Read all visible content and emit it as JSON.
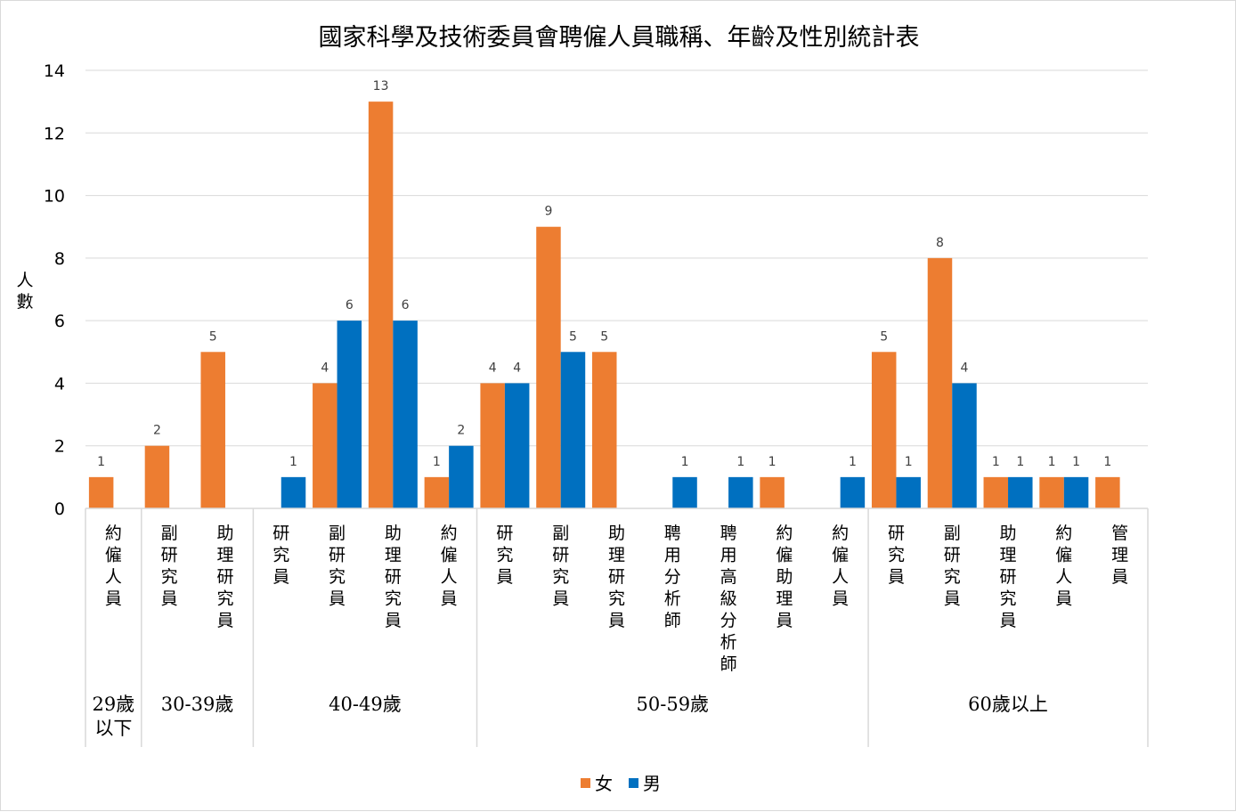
{
  "chart_data": {
    "type": "bar",
    "title": "國家科學及技術委員會聘僱人員職稱、年齡及性別統計表",
    "ylabel": "人數",
    "xlabel": "",
    "ylim": [
      0,
      14
    ],
    "yticks": [
      0,
      2,
      4,
      6,
      8,
      10,
      12,
      14
    ],
    "grid": true,
    "legend_position": "bottom",
    "groups": [
      {
        "label": "29歲以下",
        "categories": [
          "約僱人員"
        ]
      },
      {
        "label": "30-39歲",
        "categories": [
          "副研究員",
          "助理研究員"
        ]
      },
      {
        "label": "40-49歲",
        "categories": [
          "研究員",
          "副研究員",
          "助理研究員",
          "約僱人員"
        ]
      },
      {
        "label": "50-59歲",
        "categories": [
          "研究員",
          "副研究員",
          "助理研究員",
          "聘用分析師",
          "聘用高級分析師",
          "約僱助理員",
          "約僱人員"
        ]
      },
      {
        "label": "60歲以上",
        "categories": [
          "研究員",
          "副研究員",
          "助理研究員",
          "約僱人員",
          "管理員"
        ]
      }
    ],
    "series": [
      {
        "name": "女",
        "color": "#ed7d31",
        "values": [
          1,
          2,
          5,
          null,
          4,
          13,
          1,
          4,
          9,
          5,
          null,
          null,
          1,
          null,
          5,
          8,
          1,
          1,
          1
        ]
      },
      {
        "name": "男",
        "color": "#0070c0",
        "values": [
          null,
          null,
          null,
          1,
          6,
          6,
          2,
          4,
          5,
          null,
          1,
          1,
          null,
          1,
          1,
          4,
          1,
          1,
          null
        ]
      }
    ]
  }
}
